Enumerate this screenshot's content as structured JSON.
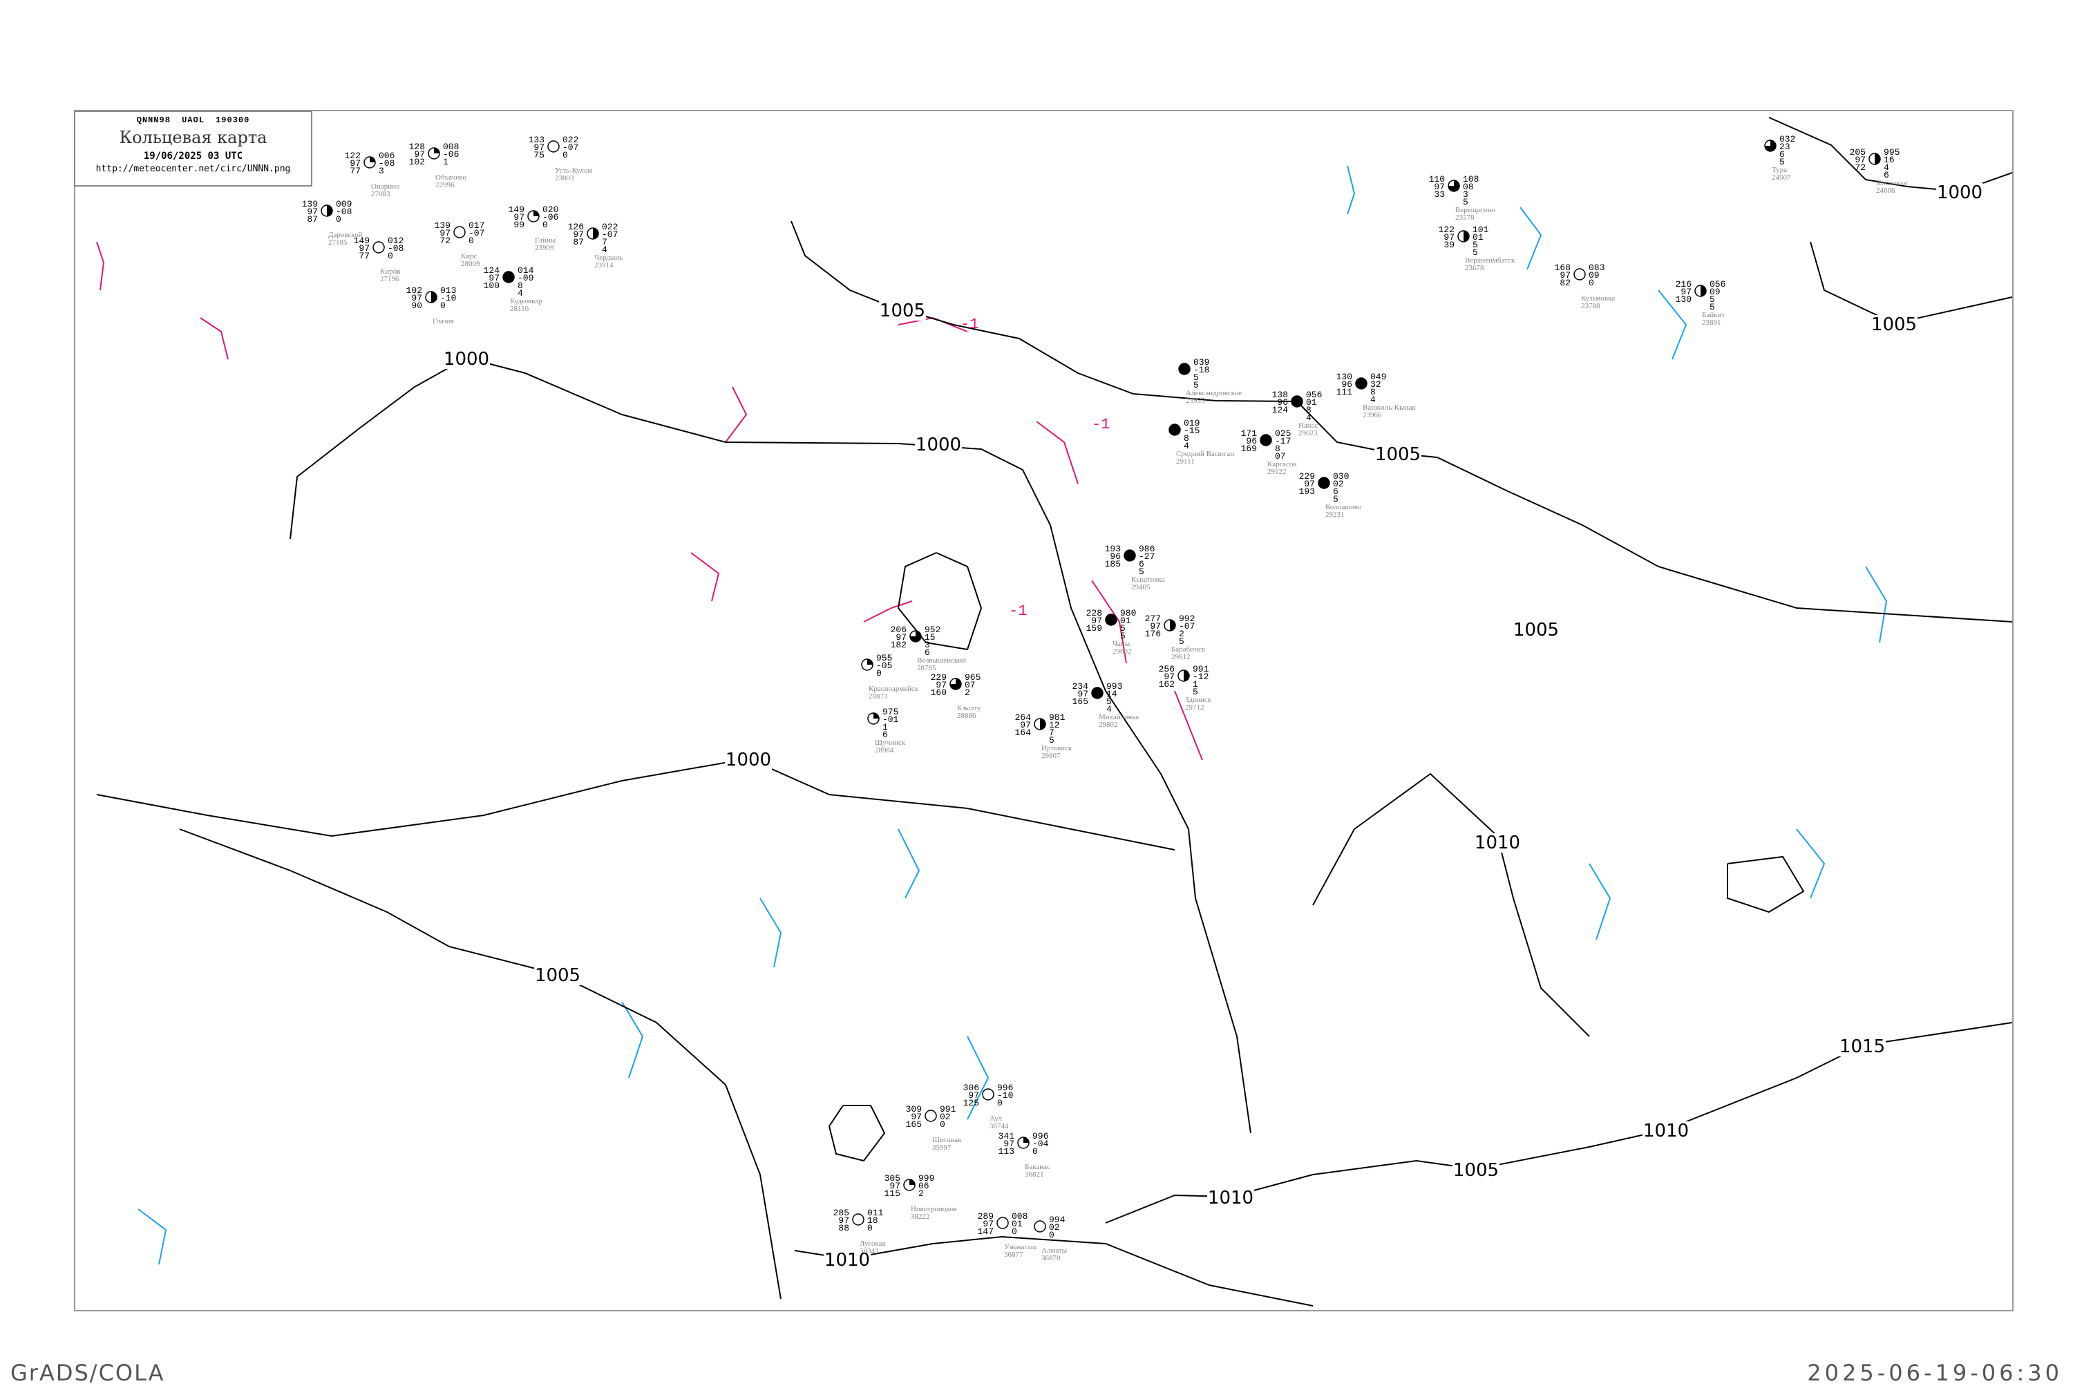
{
  "header": {
    "code_line": "QNNN98   UAOL   190300",
    "title": "Кольцевая карта",
    "datetime": "19/06/2025 03 UTC",
    "url": "http://meteocenter.net/circ/UNNN.png"
  },
  "footer": {
    "left": "GrADS/COLA",
    "right": "2025-06-19-06:30"
  },
  "colors": {
    "isobar": "#000000",
    "isallobar_positive": "#e0157a",
    "isallobar_negative": "#1aa3f0",
    "coastline": "#aaaaaa",
    "station_name": "#888888",
    "precip_marker": "#22cc44",
    "highlight_marker": "#ffff99"
  },
  "isobar_labels": [
    "1000",
    "1000",
    "1000",
    "1000",
    "1005",
    "1005",
    "1005",
    "1005",
    "1005",
    "1005",
    "1010",
    "1010",
    "1010",
    "1010",
    "1015"
  ],
  "isallobar_labels": [
    "-1",
    "-1",
    "-1"
  ],
  "stations": [
    {
      "name": "Напас",
      "id": "29023",
      "left": [
        "138",
        "96",
        "124"
      ],
      "right": [
        "056",
        "01",
        "8"
      ],
      "extra": "4",
      "cover": 1
    },
    {
      "name": "Ванжиль-Кынак",
      "id": "23966",
      "left": [
        "130",
        "96",
        "111"
      ],
      "right": [
        "049",
        "32",
        "8"
      ],
      "extra": "4",
      "cover": 1
    },
    {
      "name": "Средний Васюган",
      "id": "29111",
      "left": [
        "",
        "",
        ""
      ],
      "right": [
        "019",
        "-15",
        "8"
      ],
      "extra": "4",
      "cover": 1
    },
    {
      "name": "Каргасок",
      "id": "29122",
      "left": [
        "171",
        "96",
        "169"
      ],
      "right": [
        "025",
        "-17",
        "8"
      ],
      "extra": "07",
      "cover": 1
    },
    {
      "name": "Колпашево",
      "id": "29231",
      "left": [
        "229",
        "97",
        "193"
      ],
      "right": [
        "030",
        "02",
        "6"
      ],
      "extra": "5",
      "cover": 1
    },
    {
      "name": "Александровское",
      "id": "23955",
      "left": [
        "",
        "",
        ""
      ],
      "right": [
        "039",
        "-18",
        "5"
      ],
      "extra": "5",
      "cover": 1
    },
    {
      "name": "Верещагино",
      "id": "23578",
      "left": [
        "110",
        "97",
        "33"
      ],
      "right": [
        "108",
        "08",
        "3"
      ],
      "extra": "5",
      "cover": 0.75
    },
    {
      "name": "Верхнеимбатск",
      "id": "23678",
      "left": [
        "122",
        "97",
        "39"
      ],
      "right": [
        "101",
        "01",
        "5"
      ],
      "extra": "5",
      "cover": 0.5
    },
    {
      "name": "Кузьмовка",
      "id": "23788",
      "left": [
        "168",
        "97",
        "82"
      ],
      "right": [
        "083",
        "09",
        "0"
      ],
      "extra": "",
      "cover": 0
    },
    {
      "name": "Байкит",
      "id": "23891",
      "left": [
        "216",
        "97",
        "130"
      ],
      "right": [
        "056",
        "09",
        "5"
      ],
      "extra": "5",
      "cover": 0.5
    },
    {
      "name": "Тура",
      "id": "24507",
      "left": [
        "",
        "",
        ""
      ],
      "right": [
        "032",
        "23",
        "6"
      ],
      "extra": "5",
      "cover": 0.75
    },
    {
      "name": "Кислокан",
      "id": "24606",
      "left": [
        "205",
        "97",
        "72"
      ],
      "right": [
        "995",
        "16",
        "4"
      ],
      "extra": "6",
      "cover": 0.5
    },
    {
      "name": "Опарино",
      "id": "27083",
      "left": [
        "122",
        "97",
        "77"
      ],
      "right": [
        "006",
        "-08",
        "3"
      ],
      "extra": "",
      "cover": 0.25
    },
    {
      "name": "Объячево",
      "id": "22996",
      "left": [
        "128",
        "97",
        "102"
      ],
      "right": [
        "008",
        "-06",
        "1"
      ],
      "extra": "",
      "cover": 0.25
    },
    {
      "name": "Усть-Кулом",
      "id": "23803",
      "left": [
        "133",
        "97",
        "75"
      ],
      "right": [
        "022",
        "-07",
        "0"
      ],
      "extra": "",
      "cover": 0
    },
    {
      "name": "Даровской",
      "id": "27185",
      "left": [
        "139",
        "97",
        "87"
      ],
      "right": [
        "009",
        "-08",
        "0"
      ],
      "extra": "",
      "cover": 0.5
    },
    {
      "name": "Киров",
      "id": "27196",
      "left": [
        "149",
        "97",
        "77"
      ],
      "right": [
        "012",
        "-08",
        "0"
      ],
      "extra": "",
      "cover": 0
    },
    {
      "name": "Кирс",
      "id": "28009",
      "left": [
        "139",
        "97",
        "72"
      ],
      "right": [
        "017",
        "-07",
        "0"
      ],
      "extra": "",
      "cover": 0
    },
    {
      "name": "Гайны",
      "id": "23909",
      "left": [
        "149",
        "97",
        "99"
      ],
      "right": [
        "020",
        "-06",
        "0"
      ],
      "extra": "",
      "cover": 0.25
    },
    {
      "name": "Чердынь",
      "id": "23914",
      "left": [
        "126",
        "97",
        "87"
      ],
      "right": [
        "022",
        "-07",
        "7"
      ],
      "extra": "4",
      "cover": 0.5
    },
    {
      "name": "Кудымкар",
      "id": "28116",
      "left": [
        "124",
        "97",
        "100"
      ],
      "right": [
        "014",
        "-09",
        "8"
      ],
      "extra": "4",
      "cover": 1
    },
    {
      "name": "Глазов",
      "id": "",
      "left": [
        "102",
        "97",
        "90"
      ],
      "right": [
        "013",
        "-10",
        "0"
      ],
      "extra": "",
      "cover": 0.5
    },
    {
      "name": "Кыштовка",
      "id": "29405",
      "left": [
        "193",
        "96",
        "185"
      ],
      "right": [
        "986",
        "-27",
        "6"
      ],
      "extra": "5",
      "cover": 1
    },
    {
      "name": "Возвышенский",
      "id": "28785",
      "left": [
        "206",
        "97",
        "182"
      ],
      "right": [
        "952",
        "15",
        "3"
      ],
      "extra": "6",
      "cover": 0.75
    },
    {
      "name": "Красноармейск",
      "id": "28873",
      "left": [
        "",
        "",
        ""
      ],
      "right": [
        "955",
        "-05",
        "0"
      ],
      "extra": "",
      "cover": 0.25
    },
    {
      "name": "Кзылту",
      "id": "28886",
      "left": [
        "229",
        "97",
        "160"
      ],
      "right": [
        "965",
        "07",
        "2"
      ],
      "extra": "",
      "cover": 0.75
    },
    {
      "name": "Щучинск",
      "id": "28984",
      "left": [
        "",
        "",
        ""
      ],
      "right": [
        "975",
        "-01",
        "1"
      ],
      "extra": "6",
      "cover": 0.25
    },
    {
      "name": "Чаны",
      "id": "29602",
      "left": [
        "228",
        "97",
        "159"
      ],
      "right": [
        "980",
        "01",
        "5"
      ],
      "extra": "5",
      "cover": 1
    },
    {
      "name": "Барабинск",
      "id": "29612",
      "left": [
        "277",
        "97",
        "176"
      ],
      "right": [
        "992",
        "-07",
        "2"
      ],
      "extra": "5",
      "cover": 0.5
    },
    {
      "name": "Здвинск",
      "id": "29712",
      "left": [
        "256",
        "97",
        "162"
      ],
      "right": [
        "991",
        "-12",
        "1"
      ],
      "extra": "5",
      "cover": 0.5
    },
    {
      "name": "Михайловка",
      "id": "29802",
      "left": [
        "234",
        "97",
        "165"
      ],
      "right": [
        "993",
        "14",
        "5"
      ],
      "extra": "4",
      "cover": 1
    },
    {
      "name": "Иртышск",
      "id": "29807",
      "left": [
        "264",
        "97",
        "164"
      ],
      "right": [
        "981",
        "12",
        "7"
      ],
      "extra": "5",
      "cover": 0.5
    },
    {
      "name": "Шиганак",
      "id": "35997",
      "left": [
        "309",
        "97",
        "165"
      ],
      "right": [
        "991",
        "02",
        "0"
      ],
      "extra": "",
      "cover": 0
    },
    {
      "name": "Аул",
      "id": "36744",
      "left": [
        "306",
        "97",
        "125"
      ],
      "right": [
        "996",
        "-10",
        "0"
      ],
      "extra": "",
      "cover": 0
    },
    {
      "name": "Баканас",
      "id": "36821",
      "left": [
        "341",
        "97",
        "113"
      ],
      "right": [
        "996",
        "-04",
        "0"
      ],
      "extra": "",
      "cover": 0.25
    },
    {
      "name": "Новотроицкое",
      "id": "38222",
      "left": [
        "305",
        "97",
        "115"
      ],
      "right": [
        "999",
        "06",
        "2"
      ],
      "extra": "",
      "cover": 0.25
    },
    {
      "name": "Луговая",
      "id": "38343",
      "left": [
        "285",
        "97",
        "88"
      ],
      "right": [
        "011",
        "18",
        "0"
      ],
      "extra": "",
      "cover": 0
    },
    {
      "name": "Узынагаш",
      "id": "36877",
      "left": [
        "289",
        "97",
        "147"
      ],
      "right": [
        "008",
        "01",
        "0"
      ],
      "extra": "",
      "cover": 0
    },
    {
      "name": "Алматы",
      "id": "36870",
      "left": [
        "",
        "",
        ""
      ],
      "right": [
        "994",
        "02",
        "0"
      ],
      "extra": "",
      "cover": 0
    }
  ]
}
